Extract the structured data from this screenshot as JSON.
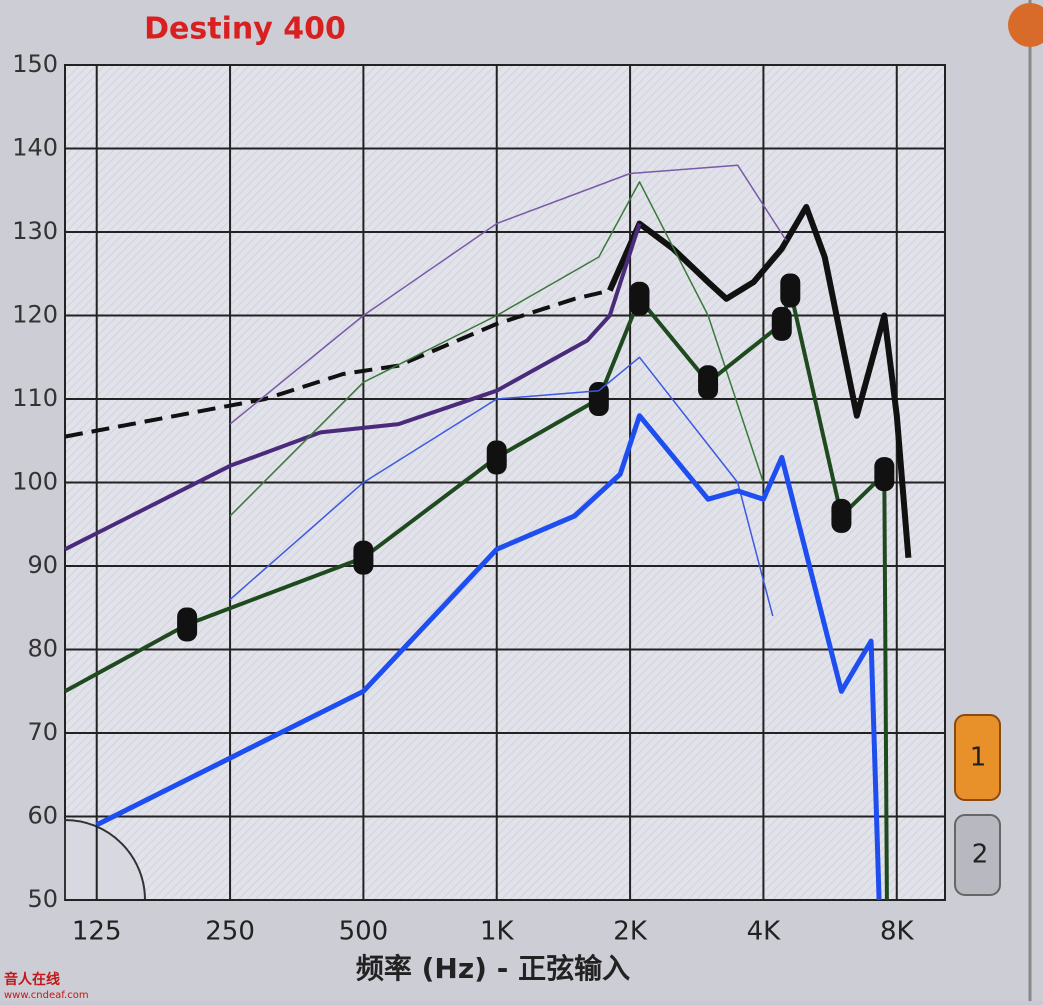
{
  "chart_data": {
    "type": "line",
    "title": "Destiny 400",
    "xlabel": "频率 (Hz) - 正弦输入",
    "xscale": "log",
    "grid": true,
    "xlim": [
      106,
      10280
    ],
    "xticks": [
      125,
      250,
      500,
      {
        "value": 1000,
        "label": "1K"
      },
      {
        "value": 2000,
        "label": "2K"
      },
      {
        "value": 4000,
        "label": "4K"
      },
      {
        "value": 8000,
        "label": "8K"
      }
    ],
    "ylim": [
      50,
      150
    ],
    "yticks": [
      50,
      60,
      70,
      80,
      90,
      100,
      110,
      120,
      130,
      140,
      150
    ],
    "series": [
      {
        "color": "#111111",
        "width": 4,
        "dash": true,
        "x": [
          106,
          300,
          450,
          600,
          1000,
          1500,
          1800
        ],
        "values": [
          105.5,
          110,
          113,
          114,
          119,
          122,
          123
        ]
      },
      {
        "color": "#111111",
        "width": 6,
        "x": [
          1800,
          2100,
          2500,
          3000,
          3300,
          3800,
          4400,
          5000,
          5500,
          6500,
          7500,
          8000,
          8500
        ],
        "values": [
          123,
          131,
          128,
          124,
          122,
          124,
          128,
          133,
          127,
          108,
          120,
          108,
          91
        ]
      },
      {
        "color": "#4a2a7a",
        "width": 4,
        "x": [
          106,
          250,
          400,
          600,
          1000,
          1600,
          1800,
          2100
        ],
        "values": [
          92,
          102,
          106,
          107,
          111,
          117,
          120,
          131
        ]
      },
      {
        "color": "#7a5aa8",
        "width": 1.5,
        "x": [
          250,
          500,
          1000,
          2000,
          3500,
          4500
        ],
        "values": [
          107,
          120,
          131,
          137,
          138,
          129
        ]
      },
      {
        "color": "#3a7a3a",
        "width": 1.5,
        "x": [
          250,
          500,
          1000,
          1700,
          2100,
          3000,
          4000
        ],
        "values": [
          96,
          112,
          120,
          127,
          136,
          120,
          100
        ]
      },
      {
        "color": "#1f4a1f",
        "width": 4,
        "marker": true,
        "x": [
          106,
          200,
          500,
          1000,
          1700,
          2100,
          3000,
          4400,
          4600,
          6000,
          7500,
          7600
        ],
        "values": [
          75,
          83,
          91,
          103,
          110,
          122,
          112,
          119,
          123,
          96,
          101,
          50
        ]
      },
      {
        "color": "#3c5ae0",
        "width": 1.5,
        "x": [
          250,
          500,
          1000,
          1700,
          2100,
          3500,
          4200
        ],
        "values": [
          86,
          100,
          110,
          111,
          115,
          100,
          84
        ]
      },
      {
        "color": "#1e4ef0",
        "width": 5,
        "x": [
          125,
          500,
          1000,
          1500,
          1900,
          2100,
          3000,
          3500,
          4000,
          4400,
          6000,
          7000,
          7300
        ],
        "values": [
          59,
          75,
          92,
          96,
          101,
          108,
          98,
          99,
          98,
          103,
          75,
          81,
          50
        ]
      }
    ]
  },
  "side_buttons": [
    "1",
    "2"
  ],
  "watermark": [
    "音人在线",
    "www.cndeaf.com"
  ]
}
